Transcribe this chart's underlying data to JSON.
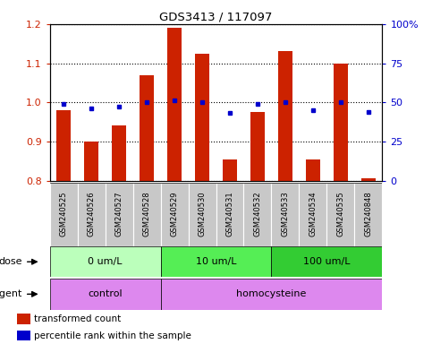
{
  "title": "GDS3413 / 117097",
  "samples": [
    "GSM240525",
    "GSM240526",
    "GSM240527",
    "GSM240528",
    "GSM240529",
    "GSM240530",
    "GSM240531",
    "GSM240532",
    "GSM240533",
    "GSM240534",
    "GSM240535",
    "GSM240848"
  ],
  "transformed_counts": [
    0.98,
    0.9,
    0.94,
    1.07,
    1.19,
    1.125,
    0.855,
    0.975,
    1.13,
    0.855,
    1.1,
    0.805
  ],
  "percentile_ranks": [
    49,
    46,
    47,
    50,
    51,
    50,
    43,
    49,
    50,
    45,
    50,
    44
  ],
  "ylim_left": [
    0.8,
    1.2
  ],
  "ylim_right": [
    0,
    100
  ],
  "yticks_left": [
    0.8,
    0.9,
    1.0,
    1.1,
    1.2
  ],
  "yticks_right": [
    0,
    25,
    50,
    75,
    100
  ],
  "ytick_labels_right": [
    "0",
    "25",
    "50",
    "75",
    "100%"
  ],
  "bar_color": "#cc2200",
  "dot_color": "#0000cc",
  "dose_groups": [
    {
      "label": "0 um/L",
      "start": 0,
      "end": 4,
      "color": "#bbffbb"
    },
    {
      "label": "10 um/L",
      "start": 4,
      "end": 8,
      "color": "#55ee55"
    },
    {
      "label": "100 um/L",
      "start": 8,
      "end": 12,
      "color": "#33cc33"
    }
  ],
  "agent_groups": [
    {
      "label": "control",
      "start": 0,
      "end": 4,
      "color": "#dd88ee"
    },
    {
      "label": "homocysteine",
      "start": 4,
      "end": 12,
      "color": "#dd88ee"
    }
  ],
  "legend_bar_label": "transformed count",
  "legend_dot_label": "percentile rank within the sample",
  "dose_label": "dose",
  "agent_label": "agent",
  "background_color": "#ffffff",
  "tick_area_color": "#c8c8c8",
  "border_color": "#000000"
}
